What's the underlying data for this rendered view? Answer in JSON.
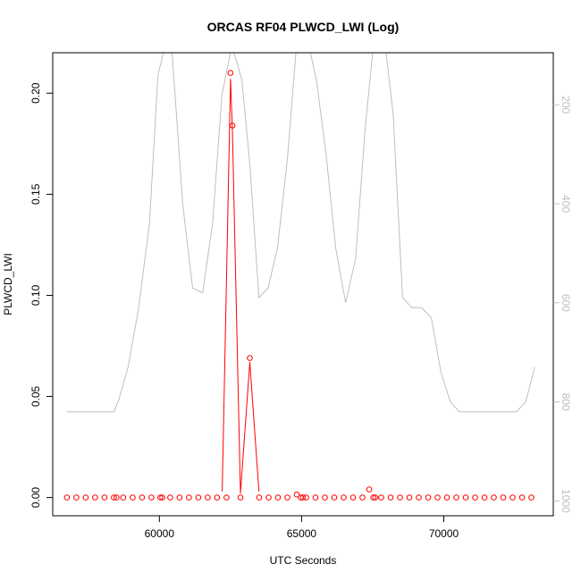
{
  "chart_data": {
    "type": "line",
    "title": "ORCAS RF04 PLWCD_LWI (Log)",
    "xlabel": "UTC Seconds",
    "ylabel": "PLWCD_LWI",
    "xlim": [
      56250,
      73850
    ],
    "ylim": [
      -0.009,
      0.22
    ],
    "x_ticks": [
      60000,
      65000,
      70000
    ],
    "x_tick_labels": [
      "60000",
      "65000",
      "70000"
    ],
    "y_ticks": [
      0.0,
      0.05,
      0.1,
      0.15,
      0.2
    ],
    "y_tick_labels": [
      "0.00",
      "0.05",
      "0.10",
      "0.15",
      "0.20"
    ],
    "right_axis": {
      "ylim_reversed": [
        1030,
        95
      ],
      "ticks": [
        200,
        400,
        600,
        800,
        1000
      ],
      "tick_labels": [
        "200",
        "400",
        "600",
        "800",
        "1000"
      ],
      "color": "#bebebe"
    },
    "grid": false,
    "series": [
      {
        "color": "#ff0000",
        "style": "points+line",
        "x": [
          56750,
          57080,
          57410,
          57740,
          58070,
          58400,
          58490,
          58730,
          59060,
          59390,
          59720,
          60030,
          60100,
          60380,
          60710,
          61040,
          61370,
          61700,
          62030,
          62360,
          62500,
          62570,
          62850,
          63180,
          63510,
          63840,
          64170,
          64500,
          64830,
          64970,
          65050,
          65160,
          65490,
          65820,
          66150,
          66480,
          66810,
          67140,
          67380,
          67520,
          67590,
          67800,
          68130,
          68460,
          68790,
          69120,
          69450,
          69780,
          70110,
          70440,
          70770,
          71100,
          71430,
          71760,
          72090,
          72420,
          72750,
          73080
        ],
        "y": [
          0,
          0,
          0,
          0,
          0,
          0,
          0,
          0,
          0,
          0,
          0,
          0,
          0,
          0,
          0,
          0,
          0,
          0,
          0,
          0,
          0.21,
          0.184,
          0,
          0.069,
          0,
          0,
          0,
          0,
          0.0015,
          0,
          0,
          0,
          0,
          0,
          0,
          0,
          0,
          0,
          0.004,
          0,
          0,
          0,
          0,
          0,
          0,
          0,
          0,
          0,
          0,
          0,
          0,
          0,
          0,
          0,
          0,
          0,
          0,
          0
        ],
        "line_x": [
          62210,
          62500,
          62570,
          62850,
          63180,
          63500
        ],
        "line_y": [
          0.003,
          0.207,
          0.18,
          0.002,
          0.067,
          0.003
        ]
      },
      {
        "color": "#bebebe",
        "style": "line",
        "axis": "right",
        "x": [
          56750,
          58400,
          58550,
          58900,
          59270,
          59650,
          59950,
          60380,
          60820,
          61170,
          61520,
          61870,
          62200,
          62550,
          62900,
          63180,
          63500,
          63820,
          64150,
          64500,
          64850,
          65180,
          65520,
          65860,
          66200,
          66550,
          66900,
          67230,
          67560,
          67900,
          68220,
          68550,
          68880,
          69220,
          69560,
          69900,
          70230,
          70550,
          70900,
          71230,
          71560,
          71900,
          72230,
          72550,
          72880,
          73200
        ],
        "y": [
          820,
          820,
          800,
          730,
          610,
          440,
          140,
          40,
          400,
          570,
          580,
          440,
          180,
          80,
          150,
          320,
          590,
          570,
          490,
          310,
          60,
          60,
          150,
          300,
          490,
          600,
          510,
          250,
          60,
          60,
          220,
          590,
          610,
          610,
          630,
          740,
          800,
          820,
          820,
          820,
          820,
          820,
          820,
          820,
          800,
          730
        ]
      }
    ]
  }
}
